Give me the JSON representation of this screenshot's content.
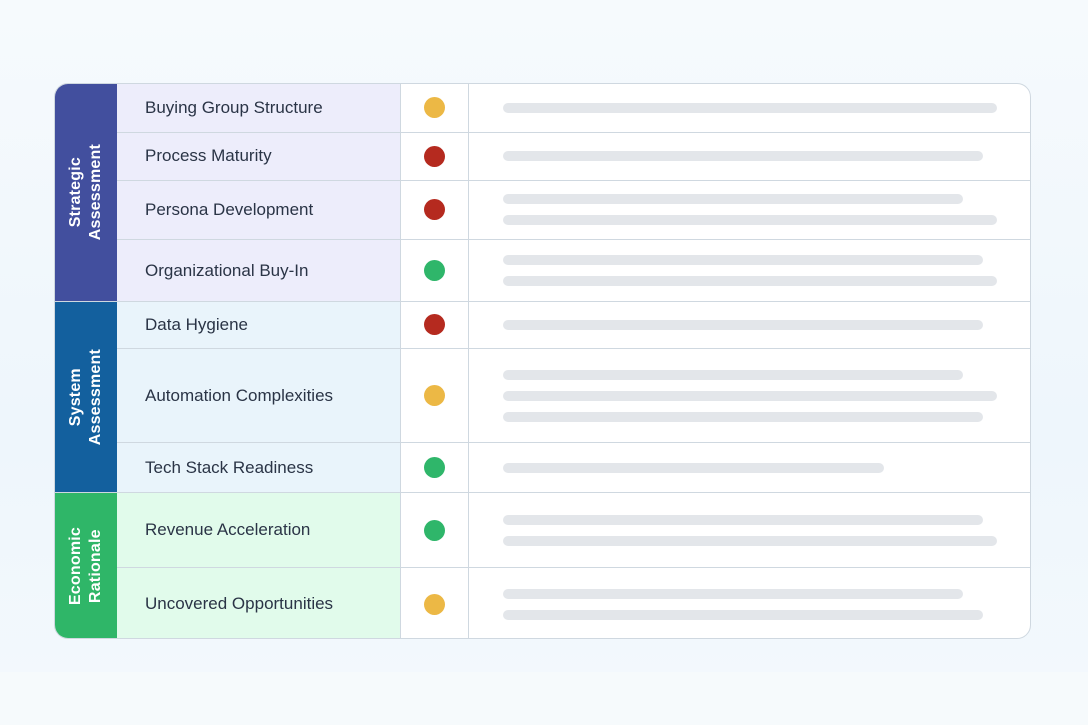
{
  "colors": {
    "strategic": "#424f9e",
    "strategic_row": "#ededfb",
    "system": "#13609e",
    "system_row": "#e9f4fb",
    "economic": "#2fb668",
    "economic_row": "#e1fbeb",
    "status_yellow": "#ecb845",
    "status_red": "#b52a1f",
    "status_green": "#2fb66a"
  },
  "groups": [
    {
      "label": "Strategic\nAssessment",
      "rows": [
        {
          "label": "Buying Group Structure",
          "status": "yellow",
          "note_lines": 1
        },
        {
          "label": "Process Maturity",
          "status": "red",
          "note_lines": 1
        },
        {
          "label": "Persona Development",
          "status": "red",
          "note_lines": 2
        },
        {
          "label": "Organizational Buy-In",
          "status": "green",
          "note_lines": 2
        }
      ]
    },
    {
      "label": "System\nAssessment",
      "rows": [
        {
          "label": "Data Hygiene",
          "status": "red",
          "note_lines": 1
        },
        {
          "label": "Automation Complexities",
          "status": "yellow",
          "note_lines": 3
        },
        {
          "label": "Tech Stack Readiness",
          "status": "green",
          "note_lines": 1
        }
      ]
    },
    {
      "label": "Economic\nRationale",
      "rows": [
        {
          "label": "Revenue Acceleration",
          "status": "green",
          "note_lines": 2
        },
        {
          "label": "Uncovered Opportunities",
          "status": "yellow",
          "note_lines": 2
        }
      ]
    }
  ]
}
